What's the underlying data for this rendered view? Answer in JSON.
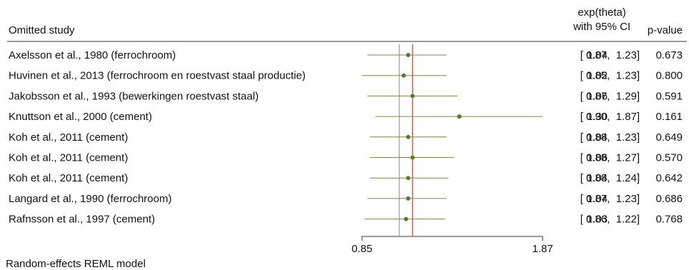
{
  "chart_data": {
    "type": "forest",
    "header": {
      "study_label": "Omitted study",
      "effect_label_line1": "exp(theta)",
      "effect_label_line2": "with 95% CI",
      "pvalue_label": "p-value"
    },
    "x_axis": {
      "scale": "log",
      "range": [
        0.85,
        1.87
      ],
      "tick_labels": [
        "0.85",
        "1.87"
      ]
    },
    "reference_lines": {
      "null_value": 1.0,
      "overall_estimate": 1.06
    },
    "colors": {
      "markers": "#5b7a2b",
      "ci_lines": "#6f8c45",
      "overall_line": "#c0392b",
      "null_line": "#888888"
    },
    "studies": [
      {
        "label": "Axelsson et al., 1980 (ferrochroom)",
        "estimate": 1.04,
        "lower": 0.87,
        "upper": 1.23,
        "est_text": "1.04",
        "ci_text": "[ 0.87,  1.23]",
        "p_value": "0.673"
      },
      {
        "label": "Huvinen et al., 2013 (ferrochroom en roestvast staal productie)",
        "estimate": 1.02,
        "lower": 0.85,
        "upper": 1.23,
        "est_text": "1.02",
        "ci_text": "[ 0.85,  1.23]",
        "p_value": "0.800"
      },
      {
        "label": "Jakobsson et al., 1993 (bewerkingen roestvast staal)",
        "estimate": 1.06,
        "lower": 0.87,
        "upper": 1.29,
        "est_text": "1.06",
        "ci_text": "[ 0.87,  1.29]",
        "p_value": "0.591"
      },
      {
        "label": "Knuttson et al., 2000 (cement)",
        "estimate": 1.3,
        "lower": 0.9,
        "upper": 1.87,
        "est_text": "1.30",
        "ci_text": "[ 0.90,  1.87]",
        "p_value": "0.161"
      },
      {
        "label": "Koh et al., 2011 (cement)",
        "estimate": 1.04,
        "lower": 0.88,
        "upper": 1.23,
        "est_text": "1.04",
        "ci_text": "[ 0.88,  1.23]",
        "p_value": "0.649"
      },
      {
        "label": "Koh et al., 2011 (cement)",
        "estimate": 1.06,
        "lower": 0.88,
        "upper": 1.27,
        "est_text": "1.06",
        "ci_text": "[ 0.88,  1.27]",
        "p_value": "0.570"
      },
      {
        "label": "Koh et al., 2011 (cement)",
        "estimate": 1.04,
        "lower": 0.88,
        "upper": 1.24,
        "est_text": "1.04",
        "ci_text": "[ 0.88,  1.24]",
        "p_value": "0.642"
      },
      {
        "label": "Langard et al., 1990 (ferrochroom)",
        "estimate": 1.04,
        "lower": 0.87,
        "upper": 1.23,
        "est_text": "1.04",
        "ci_text": "[ 0.87,  1.23]",
        "p_value": "0.686"
      },
      {
        "label": "Rafnsson et al., 1997 (cement)",
        "estimate": 1.03,
        "lower": 0.86,
        "upper": 1.22,
        "est_text": "1.03",
        "ci_text": "[ 0.86,  1.22]",
        "p_value": "0.768"
      }
    ],
    "footnote": "Random-effects REML model"
  }
}
